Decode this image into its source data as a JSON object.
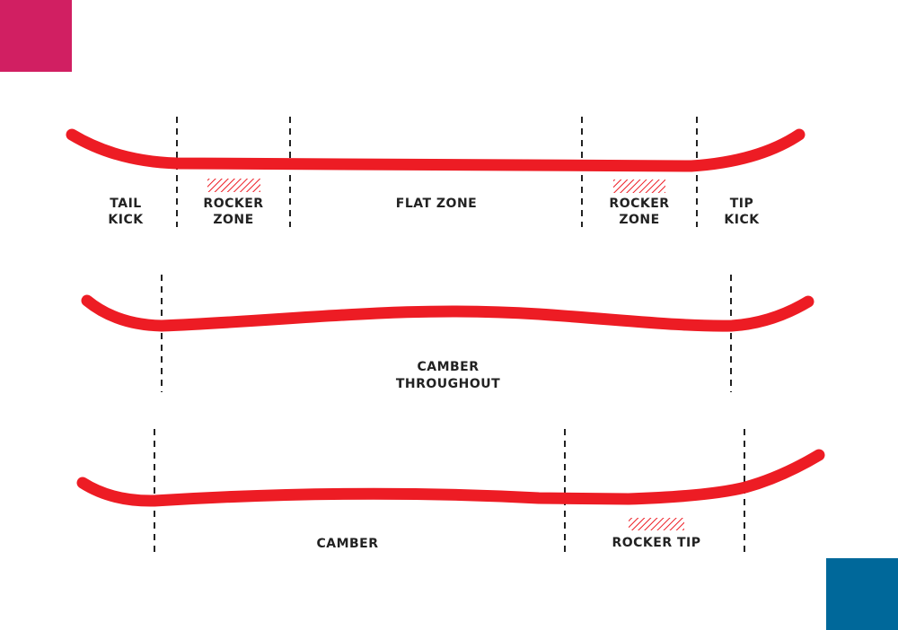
{
  "colors": {
    "curve": "#ed1c24",
    "dash": "#222222",
    "corner_top_left": "#d11f62",
    "corner_bottom_right": "#00689a"
  },
  "profiles": [
    {
      "labels": {
        "tail_kick": [
          "TAIL",
          "KICK"
        ],
        "rocker_zone_left": [
          "ROCKER",
          "ZONE"
        ],
        "flat_zone": "FLAT ZONE",
        "rocker_zone_right": [
          "ROCKER",
          "ZONE"
        ],
        "tip_kick": [
          "TIP",
          "KICK"
        ]
      }
    },
    {
      "labels": {
        "camber_throughout": [
          "CAMBER",
          "THROUGHOUT"
        ]
      }
    },
    {
      "labels": {
        "camber": "CAMBER",
        "rocker_tip": "ROCKER TIP"
      }
    }
  ]
}
